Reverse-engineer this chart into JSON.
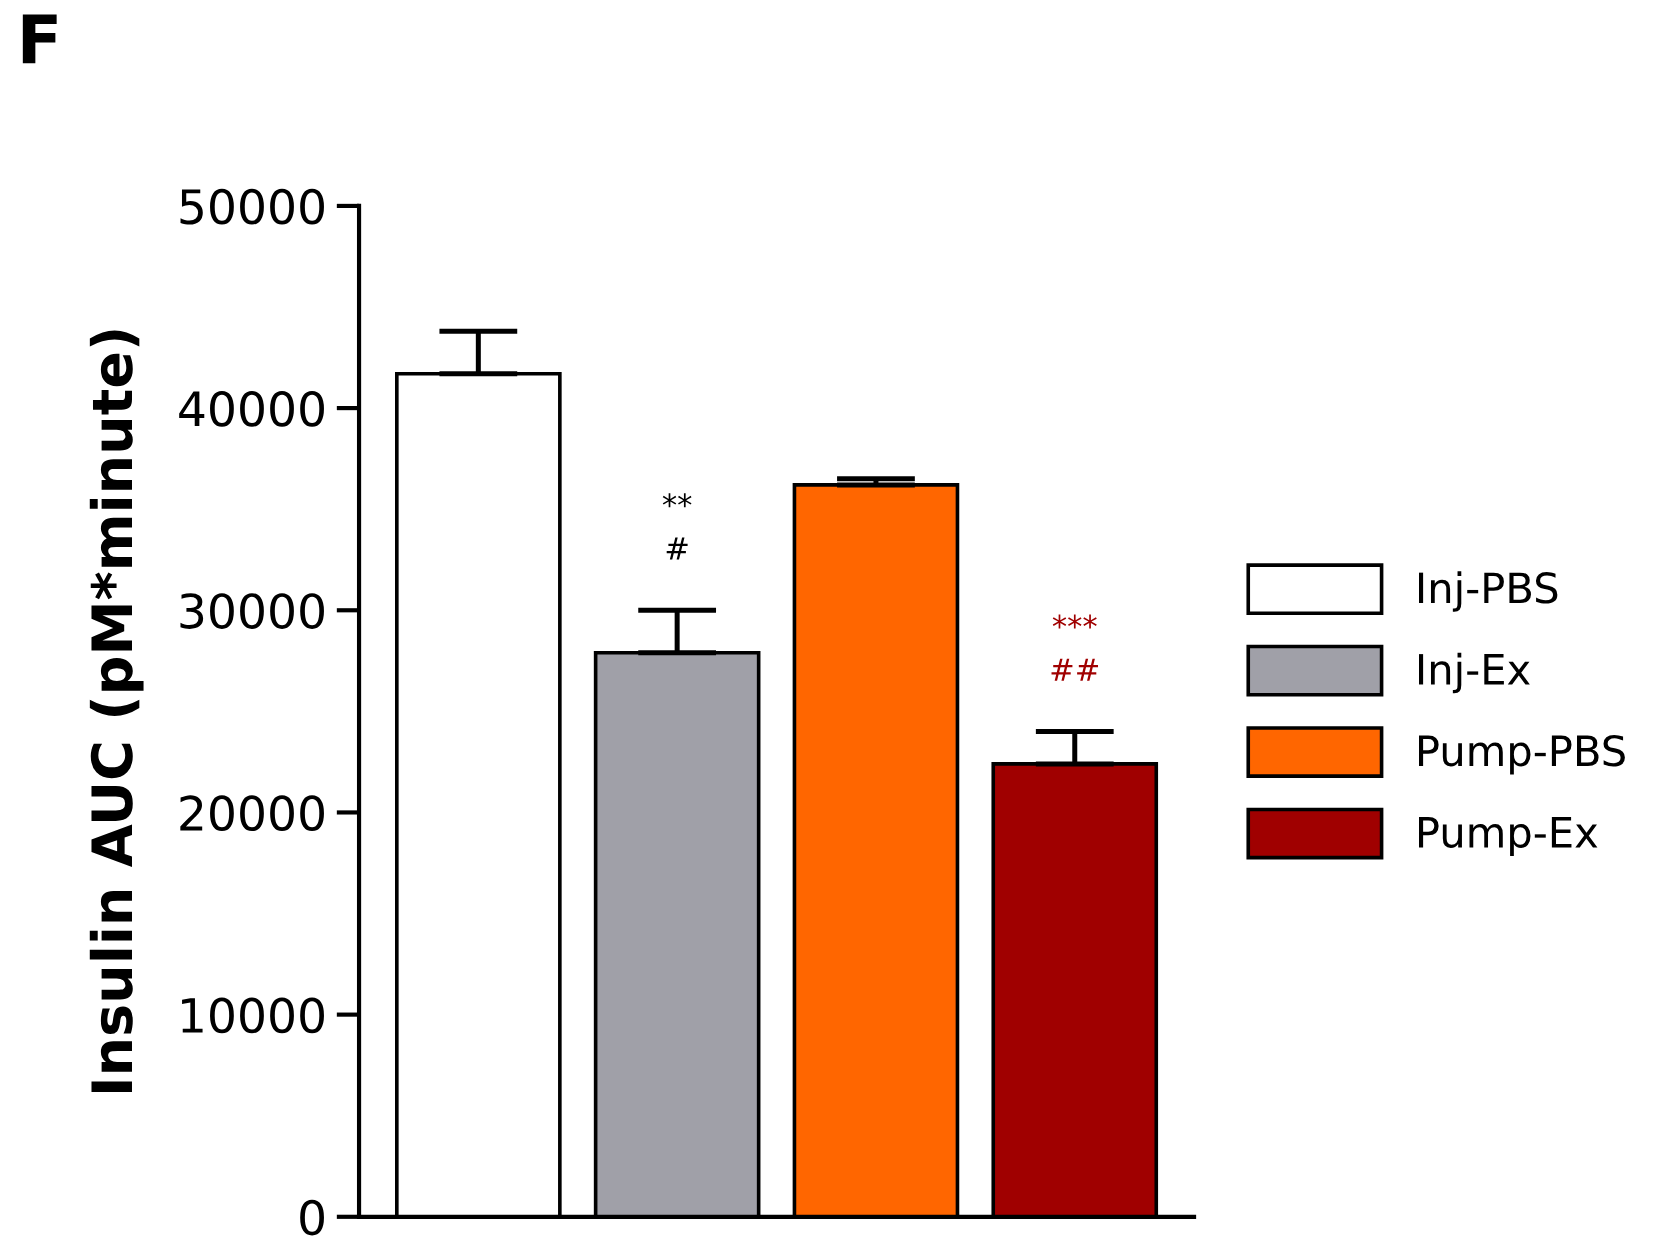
{
  "chart_data": {
    "type": "bar",
    "title": "F",
    "ylabel": "Insulin AUC (pM*minute)",
    "categories": [
      null,
      null,
      null,
      null
    ],
    "series": [
      {
        "name": "Inj-PBS",
        "color": "#ffffff",
        "values": [
          41700,
          null,
          null,
          null
        ],
        "errors": [
          [
            41700,
            43800
          ],
          null,
          null,
          null
        ]
      },
      {
        "name": "Inj-Ex",
        "color": "#a0a0a8",
        "values": [
          null,
          27900,
          null,
          null
        ],
        "errors": [
          null,
          [
            27900,
            30000
          ],
          null,
          null
        ],
        "value_labels": [
          null,
          "**\n#",
          null,
          null
        ]
      },
      {
        "name": "Pump-PBS",
        "color": "#ff6600",
        "values": [
          null,
          null,
          36200,
          null
        ],
        "errors": [
          null,
          null,
          [
            36200,
            36500
          ],
          null
        ]
      },
      {
        "name": "Pump-Ex",
        "color": "#a00000",
        "values": [
          null,
          null,
          null,
          22400
        ],
        "errors": [
          null,
          null,
          null,
          [
            22400,
            24000
          ]
        ],
        "value_labels": [
          null,
          null,
          null,
          "***\n##"
        ]
      }
    ],
    "ylim": [
      0,
      50000
    ],
    "yticks": [
      0,
      10000,
      20000,
      30000,
      40000,
      50000
    ],
    "grid": false,
    "legend": "right"
  }
}
